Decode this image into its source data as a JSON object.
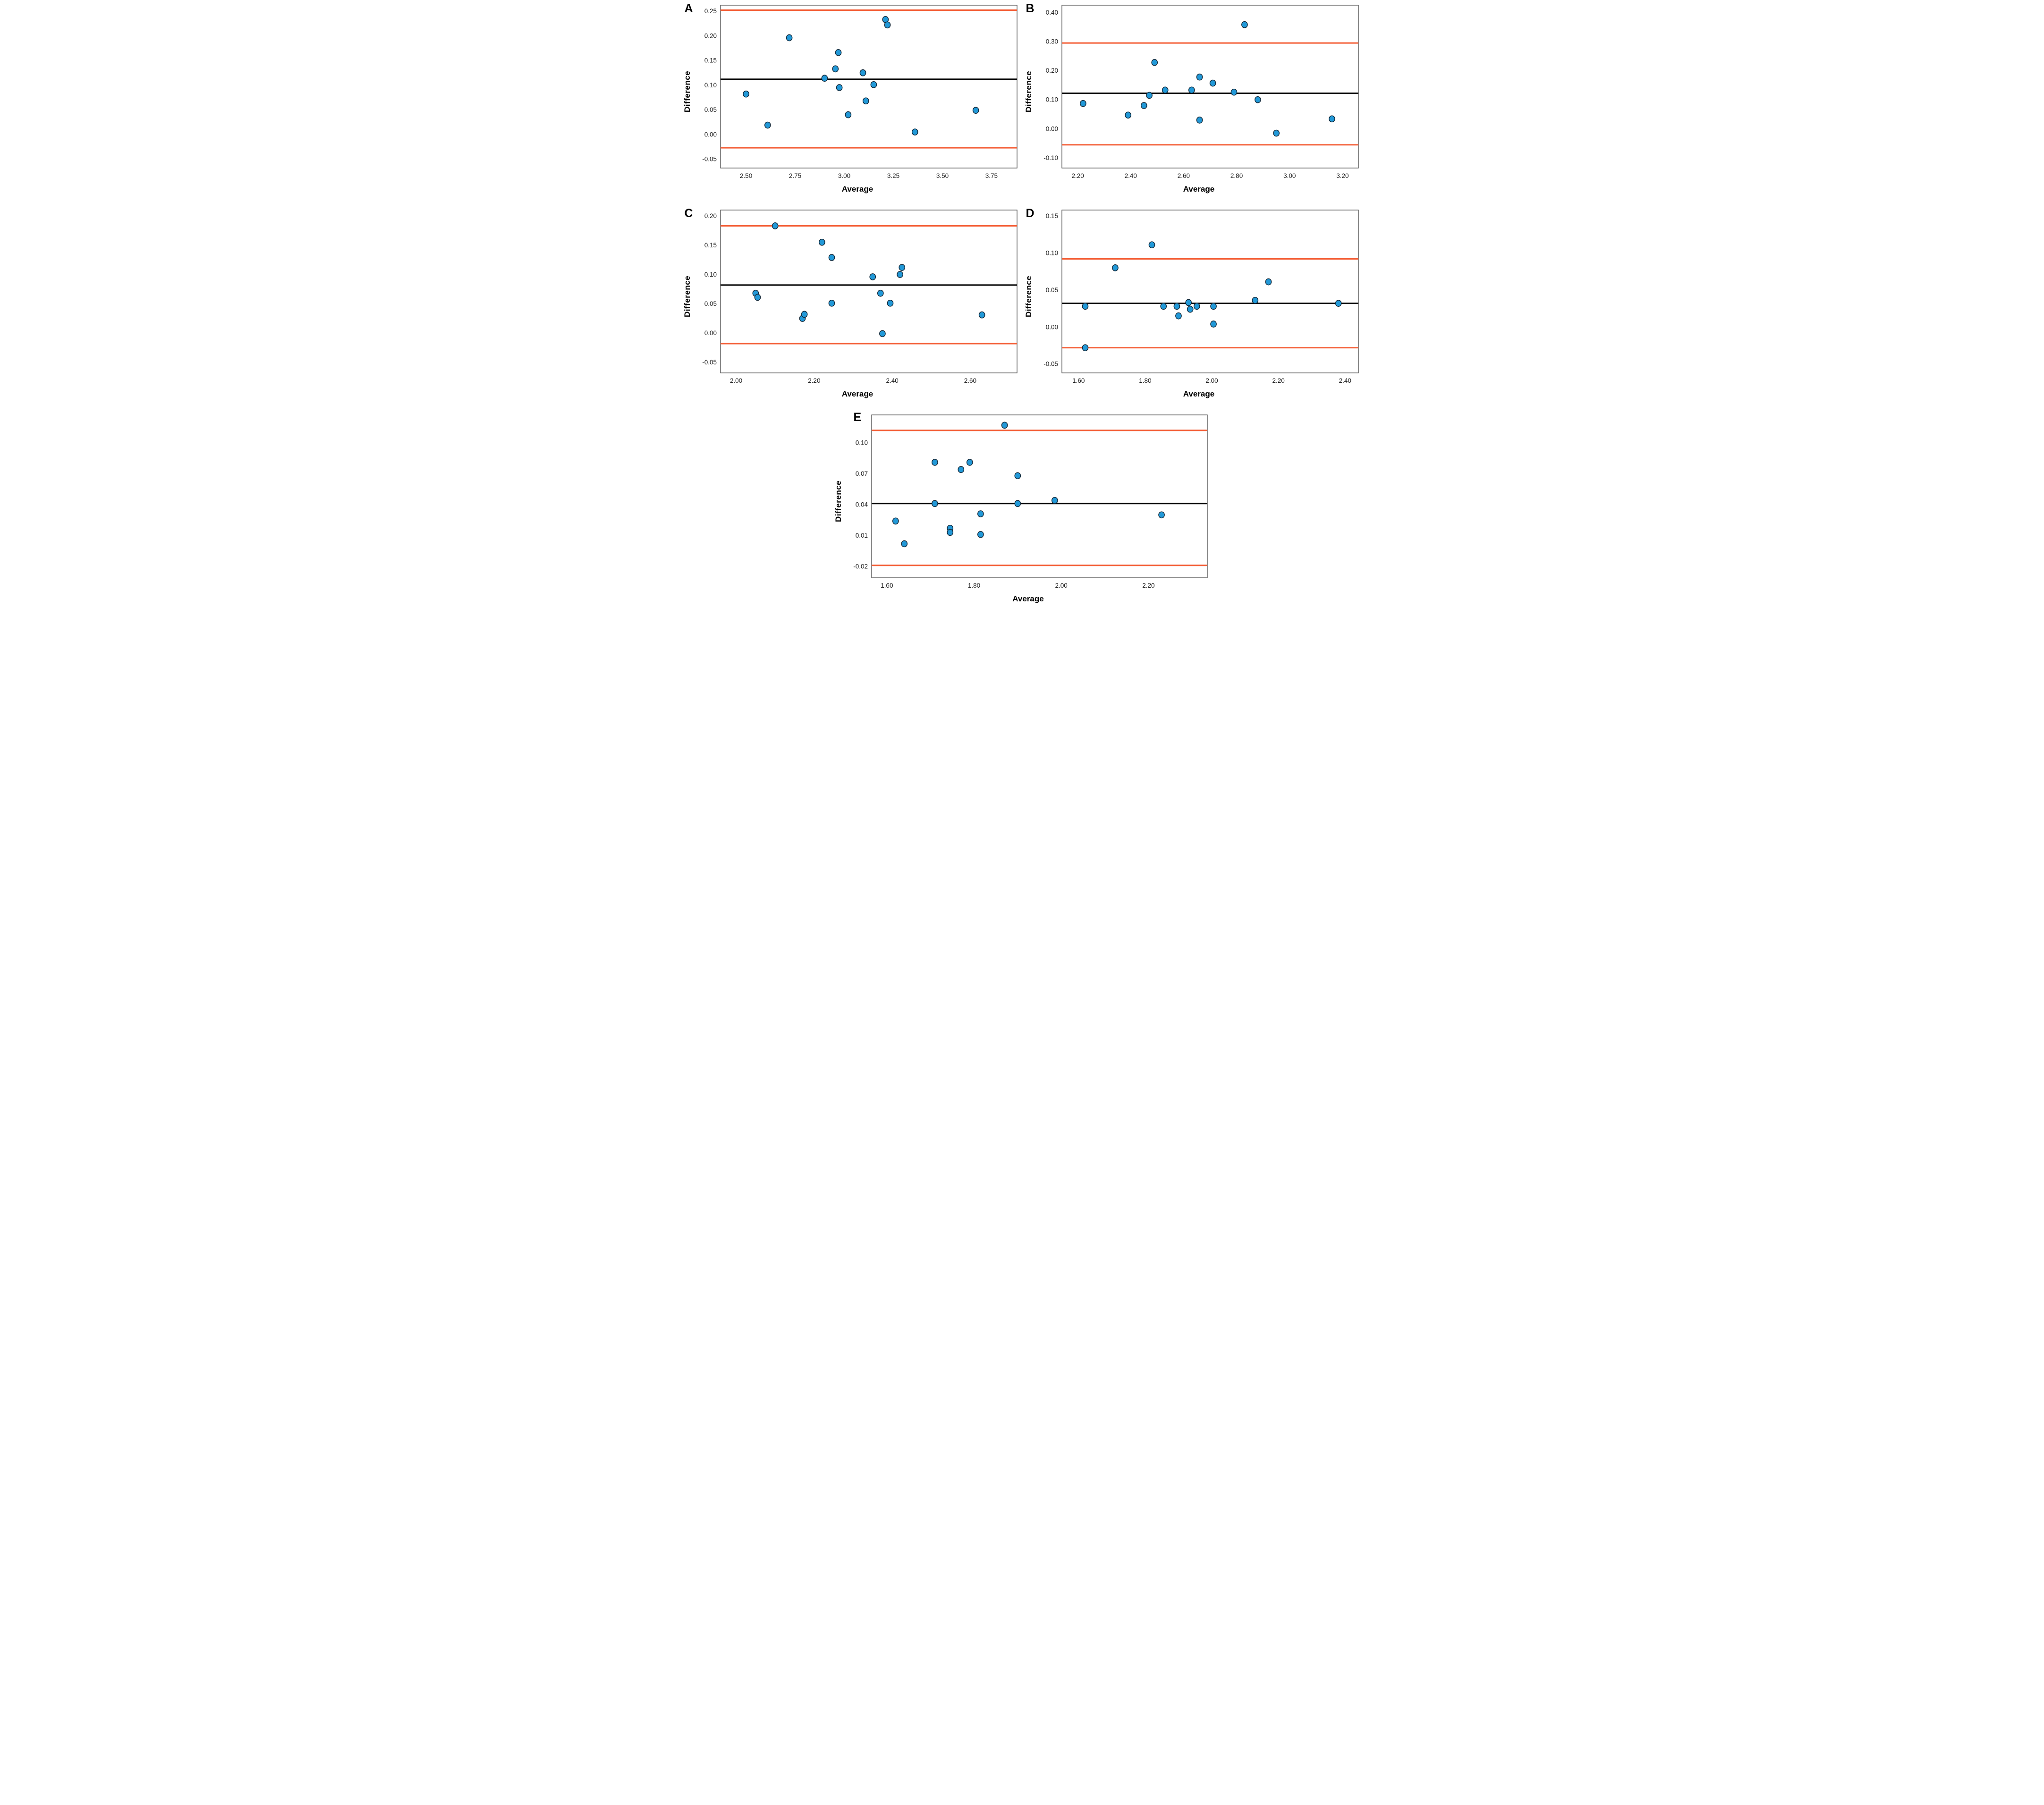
{
  "figure_type": "bland-altman-panels",
  "styles": {
    "point_fill": "#2299D8",
    "point_stroke": "#13293A",
    "loa_color": "#F4613A",
    "mean_color": "#000000",
    "axis_color": "#4A4A4A",
    "tick_color": "#1A1A1A"
  },
  "chart_data": [
    {
      "type": "scatter",
      "panel": "A",
      "xlabel": "Average",
      "ylabel": "Difference",
      "xlim": [
        2.37,
        3.88
      ],
      "ylim": [
        -0.068,
        0.262
      ],
      "xticks": [
        2.5,
        2.75,
        3.0,
        3.25,
        3.5,
        3.75
      ],
      "yticks": [
        -0.05,
        0.0,
        0.05,
        0.1,
        0.15,
        0.2,
        0.25
      ],
      "mean_line": 0.112,
      "upper_loa": 0.252,
      "lower_loa": -0.027,
      "legend": "off",
      "grid": "off",
      "points": [
        [
          2.5,
          0.082
        ],
        [
          2.61,
          0.019
        ],
        [
          2.72,
          0.196
        ],
        [
          2.9,
          0.114
        ],
        [
          2.955,
          0.133
        ],
        [
          2.97,
          0.166
        ],
        [
          2.975,
          0.095
        ],
        [
          3.02,
          0.04
        ],
        [
          3.095,
          0.125
        ],
        [
          3.11,
          0.068
        ],
        [
          3.15,
          0.101
        ],
        [
          3.21,
          0.233
        ],
        [
          3.22,
          0.222
        ],
        [
          3.36,
          0.005
        ],
        [
          3.67,
          0.049
        ]
      ]
    },
    {
      "type": "scatter",
      "panel": "B",
      "xlabel": "Average",
      "ylabel": "Difference",
      "xlim": [
        2.14,
        3.26
      ],
      "ylim": [
        -0.135,
        0.425
      ],
      "xticks": [
        2.2,
        2.4,
        2.6,
        2.8,
        3.0,
        3.2
      ],
      "yticks": [
        -0.1,
        0.0,
        0.1,
        0.2,
        0.3,
        0.4
      ],
      "mean_line": 0.122,
      "upper_loa": 0.295,
      "lower_loa": -0.055,
      "legend": "off",
      "grid": "off",
      "points": [
        [
          2.22,
          0.087
        ],
        [
          2.39,
          0.047
        ],
        [
          2.45,
          0.08
        ],
        [
          2.47,
          0.115
        ],
        [
          2.49,
          0.228
        ],
        [
          2.53,
          0.133
        ],
        [
          2.63,
          0.133
        ],
        [
          2.66,
          0.178
        ],
        [
          2.66,
          0.03
        ],
        [
          2.71,
          0.157
        ],
        [
          2.79,
          0.126
        ],
        [
          2.83,
          0.358
        ],
        [
          2.88,
          0.1
        ],
        [
          2.95,
          -0.015
        ],
        [
          3.16,
          0.034
        ]
      ]
    },
    {
      "type": "scatter",
      "panel": "C",
      "xlabel": "Average",
      "ylabel": "Difference",
      "xlim": [
        1.96,
        2.72
      ],
      "ylim": [
        -0.068,
        0.21
      ],
      "xticks": [
        2.0,
        2.2,
        2.4,
        2.6
      ],
      "yticks": [
        -0.05,
        0.0,
        0.05,
        0.1,
        0.15,
        0.2
      ],
      "mean_line": 0.082,
      "upper_loa": 0.183,
      "lower_loa": -0.018,
      "legend": "off",
      "grid": "off",
      "points": [
        [
          2.05,
          0.068
        ],
        [
          2.055,
          0.061
        ],
        [
          2.1,
          0.183
        ],
        [
          2.17,
          0.025
        ],
        [
          2.175,
          0.032
        ],
        [
          2.22,
          0.155
        ],
        [
          2.245,
          0.129
        ],
        [
          2.245,
          0.051
        ],
        [
          2.35,
          0.096
        ],
        [
          2.37,
          0.068
        ],
        [
          2.375,
          -0.001
        ],
        [
          2.395,
          0.051
        ],
        [
          2.42,
          0.1
        ],
        [
          2.425,
          0.112
        ],
        [
          2.63,
          0.031
        ]
      ]
    },
    {
      "type": "scatter",
      "panel": "D",
      "xlabel": "Average",
      "ylabel": "Difference",
      "xlim": [
        1.55,
        2.44
      ],
      "ylim": [
        -0.062,
        0.158
      ],
      "xticks": [
        1.6,
        1.8,
        2.0,
        2.2,
        2.4
      ],
      "yticks": [
        -0.05,
        0.0,
        0.05,
        0.1,
        0.15
      ],
      "mean_line": 0.032,
      "upper_loa": 0.092,
      "lower_loa": -0.028,
      "legend": "off",
      "grid": "off",
      "points": [
        [
          1.62,
          0.028
        ],
        [
          1.62,
          -0.028
        ],
        [
          1.71,
          0.08
        ],
        [
          1.82,
          0.111
        ],
        [
          1.855,
          0.028
        ],
        [
          1.895,
          0.028
        ],
        [
          1.9,
          0.015
        ],
        [
          1.93,
          0.033
        ],
        [
          1.935,
          0.024
        ],
        [
          1.955,
          0.028
        ],
        [
          2.005,
          0.028
        ],
        [
          2.005,
          0.004
        ],
        [
          2.13,
          0.036
        ],
        [
          2.17,
          0.061
        ],
        [
          2.38,
          0.032
        ]
      ]
    },
    {
      "type": "scatter",
      "panel": "E",
      "xlabel": "Average",
      "ylabel": "Difference",
      "xlim": [
        1.565,
        2.335
      ],
      "ylim": [
        -0.031,
        0.127
      ],
      "xticks": [
        1.6,
        1.8,
        2.0,
        2.2
      ],
      "yticks": [
        -0.02,
        0.01,
        0.04,
        0.07,
        0.1
      ],
      "mean_line": 0.041,
      "upper_loa": 0.112,
      "lower_loa": -0.019,
      "legend": "off",
      "grid": "off",
      "points": [
        [
          1.62,
          0.024
        ],
        [
          1.64,
          0.002
        ],
        [
          1.71,
          0.081
        ],
        [
          1.71,
          0.041
        ],
        [
          1.745,
          0.017
        ],
        [
          1.745,
          0.013
        ],
        [
          1.77,
          0.074
        ],
        [
          1.79,
          0.081
        ],
        [
          1.815,
          0.031
        ],
        [
          1.815,
          0.011
        ],
        [
          1.87,
          0.117
        ],
        [
          1.9,
          0.068
        ],
        [
          1.9,
          0.041
        ],
        [
          1.985,
          0.044
        ],
        [
          2.23,
          0.03
        ]
      ]
    }
  ]
}
